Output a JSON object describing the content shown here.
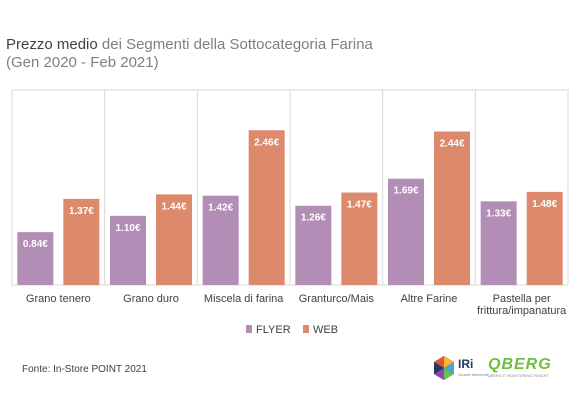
{
  "title": {
    "bold": "Prezzo medio",
    "rest": " dei Segmenti della Sottocategoria Farina",
    "subtitle": "(Gen 2020 - Feb 2021)"
  },
  "chart_data": {
    "type": "bar",
    "categories": [
      "Grano tenero",
      "Grano duro",
      "Miscela di farina",
      "Granturco/Mais",
      "Altre Farine",
      "Pastella per frittura/impanatura"
    ],
    "category_lines": [
      [
        "Grano tenero"
      ],
      [
        "Grano duro"
      ],
      [
        "Miscela di farina"
      ],
      [
        "Granturco/Mais"
      ],
      [
        "Altre Farine"
      ],
      [
        "Pastella per",
        "frittura/impanatura"
      ]
    ],
    "series": [
      {
        "name": "FLYER",
        "color": "#b28db5",
        "values": [
          0.84,
          1.1,
          1.42,
          1.26,
          1.69,
          1.33
        ],
        "labels": [
          "0.84€",
          "1.10€",
          "1.42€",
          "1.26€",
          "1.69€",
          "1.33€"
        ]
      },
      {
        "name": "WEB",
        "color": "#dd8a6c",
        "values": [
          1.37,
          1.44,
          2.46,
          1.47,
          2.44,
          1.48
        ],
        "labels": [
          "1.37€",
          "1.44€",
          "2.46€",
          "1.47€",
          "2.44€",
          "1.48€"
        ]
      }
    ],
    "ylim": [
      0,
      3.1
    ],
    "grid": "vertical separators between categories",
    "legend_position": "bottom"
  },
  "source": "Fonte: In-Store POINT 2021",
  "logos": {
    "iri_text": "IRi",
    "iri_sub": "Growth delivered",
    "qberg_text": "QBERG",
    "qberg_sub": "QBERG.IT MONITORING INSIGHT"
  }
}
